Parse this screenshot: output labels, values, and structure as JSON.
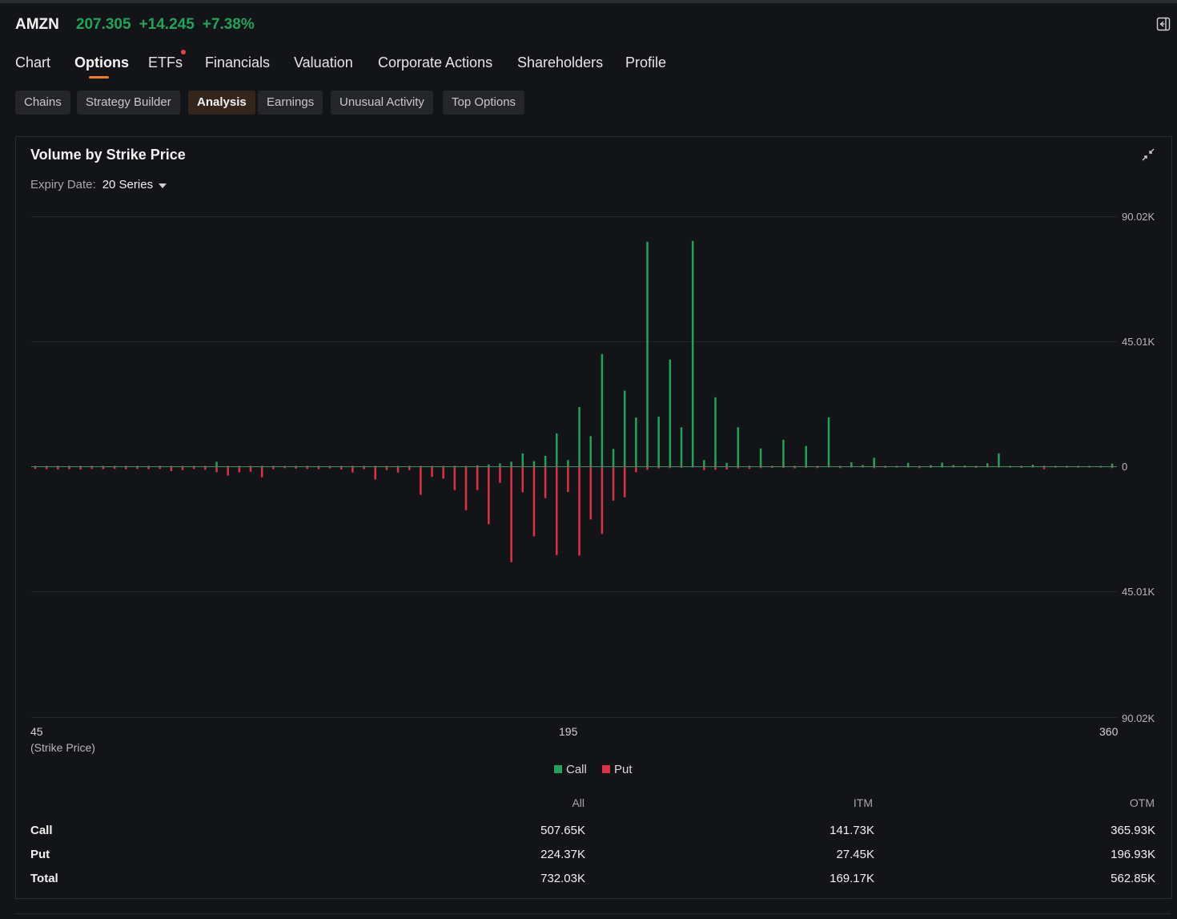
{
  "header": {
    "symbol": "AMZN",
    "price": "207.305",
    "change": "+14.245",
    "change_pct": "+7.38%",
    "panel_icon": "collapse-panel-icon",
    "up_color": "#1fa45a",
    "down_color": "#e03048",
    "accent": "#f57c20"
  },
  "tabs": [
    {
      "label": "Chart"
    },
    {
      "label": "Options",
      "active": true
    },
    {
      "label": "ETFs",
      "badge": true
    },
    {
      "label": "Financials"
    },
    {
      "label": "Valuation"
    },
    {
      "label": "Corporate Actions"
    },
    {
      "label": "Shareholders"
    },
    {
      "label": "Profile"
    }
  ],
  "subtabs": [
    {
      "label": "Chains"
    },
    {
      "label": "Strategy Builder"
    },
    {
      "label": "Analysis",
      "active": true
    },
    {
      "label": "Earnings"
    },
    {
      "label": "Unusual Activity"
    },
    {
      "label": "Top Options"
    }
  ],
  "card": {
    "title": "Volume by Strike Price",
    "expiry_label": "Expiry Date:",
    "expiry_value": "20 Series",
    "expand_icon": "collapse-arrows-icon"
  },
  "chart_data": {
    "type": "bar",
    "title": "Volume by Strike Price",
    "xlabel": "(Strike Price)",
    "ylabel": "",
    "x_ticks": [
      "45",
      "195",
      "360"
    ],
    "y_ticks": [
      "90.02K",
      "45.01K",
      "0",
      "45.01K",
      "90.02K"
    ],
    "ylim": [
      -90020,
      90020
    ],
    "legend": [
      "Call",
      "Put"
    ],
    "legend_position": "bottom-center",
    "bar_count": 96,
    "series": [
      {
        "name": "Call",
        "values": [
          200,
          100,
          100,
          100,
          100,
          100,
          100,
          100,
          100,
          100,
          100,
          100,
          100,
          100,
          100,
          100,
          1800,
          100,
          100,
          100,
          100,
          100,
          100,
          300,
          100,
          100,
          100,
          100,
          100,
          100,
          100,
          200,
          200,
          200,
          200,
          200,
          200,
          300,
          200,
          500,
          800,
          1200,
          1800,
          4800,
          2000,
          3900,
          12000,
          2400,
          21500,
          11000,
          40600,
          6400,
          27400,
          17700,
          81000,
          18000,
          38600,
          14200,
          81300,
          2400,
          25000,
          1400,
          14200,
          300,
          6600,
          300,
          9700,
          200,
          7500,
          200,
          17800,
          300,
          1600,
          600,
          3200,
          300,
          300,
          1400,
          300,
          600,
          1500,
          600,
          400,
          300,
          1200,
          4800,
          300,
          300,
          700,
          300,
          300,
          300,
          300,
          300,
          300,
          1100
        ]
      },
      {
        "name": "Put",
        "values": [
          800,
          900,
          1000,
          900,
          1000,
          800,
          900,
          800,
          900,
          800,
          900,
          800,
          1600,
          1200,
          800,
          1100,
          2000,
          3200,
          2000,
          1800,
          3800,
          900,
          500,
          700,
          800,
          900,
          600,
          1000,
          2100,
          900,
          4600,
          1200,
          2100,
          1200,
          10100,
          3700,
          4300,
          8400,
          15700,
          8400,
          20700,
          5800,
          34400,
          9200,
          25100,
          11300,
          31800,
          9100,
          32000,
          19000,
          24200,
          12200,
          11000,
          2000,
          1100,
          600,
          500,
          400,
          300,
          1200,
          1100,
          1000,
          600,
          800,
          500,
          400,
          400,
          600,
          400,
          500,
          300,
          500,
          300,
          200,
          500,
          400,
          300,
          300,
          500,
          400,
          300,
          200,
          300,
          400,
          300,
          200,
          300,
          400,
          300,
          900,
          300,
          300,
          300,
          300,
          300,
          500
        ]
      }
    ]
  },
  "summary": {
    "columns": [
      "All",
      "ITM",
      "OTM"
    ],
    "rows": [
      {
        "label": "Call",
        "all": "507.65K",
        "itm": "141.73K",
        "otm": "365.93K"
      },
      {
        "label": "Put",
        "all": "224.37K",
        "itm": "27.45K",
        "otm": "196.93K"
      },
      {
        "label": "Total",
        "all": "732.03K",
        "itm": "169.17K",
        "otm": "562.85K"
      }
    ]
  }
}
